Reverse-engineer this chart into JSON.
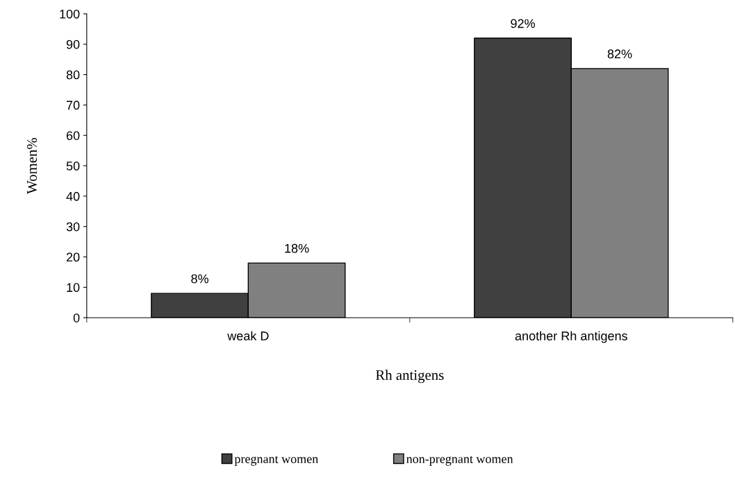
{
  "chart_data": {
    "type": "bar",
    "xlabel": "Rh antigens",
    "ylabel": "Women%",
    "categories": [
      "weak D",
      "another Rh antigens"
    ],
    "series": [
      {
        "name": "pregnant women",
        "color": "#404040",
        "values": [
          8,
          92
        ],
        "value_labels": [
          "8%",
          "92%"
        ]
      },
      {
        "name": "non-pregnant women",
        "color": "#808080",
        "values": [
          18,
          82
        ],
        "value_labels": [
          "18%",
          "82%"
        ]
      }
    ],
    "ylim": [
      0,
      100
    ],
    "yticks": [
      0,
      10,
      20,
      30,
      40,
      50,
      60,
      70,
      80,
      90,
      100
    ],
    "grid": false,
    "legend": "bottom"
  }
}
